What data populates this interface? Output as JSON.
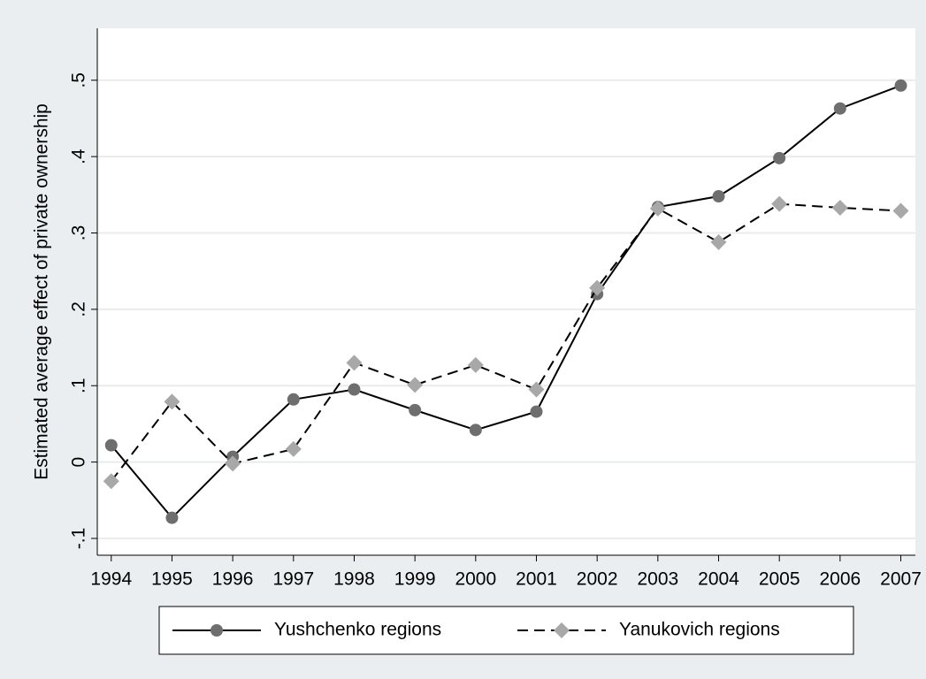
{
  "chart_data": {
    "type": "line",
    "ylabel": "Estimated average effect of private ownership",
    "x": [
      1994,
      1995,
      1996,
      1997,
      1998,
      1999,
      2000,
      2001,
      2002,
      2003,
      2004,
      2005,
      2006,
      2007
    ],
    "xticks": [
      1994,
      1995,
      1996,
      1997,
      1998,
      1999,
      2000,
      2001,
      2002,
      2003,
      2004,
      2005,
      2006,
      2007
    ],
    "xlim": [
      1993.77,
      2007.24
    ],
    "ylim": [
      -0.122,
      0.568
    ],
    "yticks": [
      {
        "value": -0.1,
        "label": "-.1"
      },
      0,
      {
        "value": 0.1,
        "label": ".1"
      },
      {
        "value": 0.2,
        "label": ".2"
      },
      {
        "value": 0.3,
        "label": ".3"
      },
      {
        "value": 0.4,
        "label": ".4"
      },
      {
        "value": 0.5,
        "label": ".5"
      }
    ],
    "grid": true,
    "legend": "bottom",
    "series": [
      {
        "name": "Yushchenko regions",
        "color": "#6e6e6e",
        "line_color": "#000000",
        "marker": "circle",
        "dash": "solid",
        "values": [
          0.022,
          -0.073,
          0.007,
          0.082,
          0.095,
          0.068,
          0.042,
          0.066,
          0.22,
          0.334,
          0.348,
          0.398,
          0.463,
          0.493
        ]
      },
      {
        "name": "Yanukovich regions",
        "color": "#a8a8a8",
        "line_color": "#000000",
        "marker": "diamond",
        "dash": "dashed",
        "values": [
          -0.025,
          0.079,
          -0.002,
          0.017,
          0.13,
          0.101,
          0.127,
          0.095,
          0.228,
          0.332,
          0.288,
          0.338,
          0.333,
          0.329
        ]
      }
    ]
  }
}
